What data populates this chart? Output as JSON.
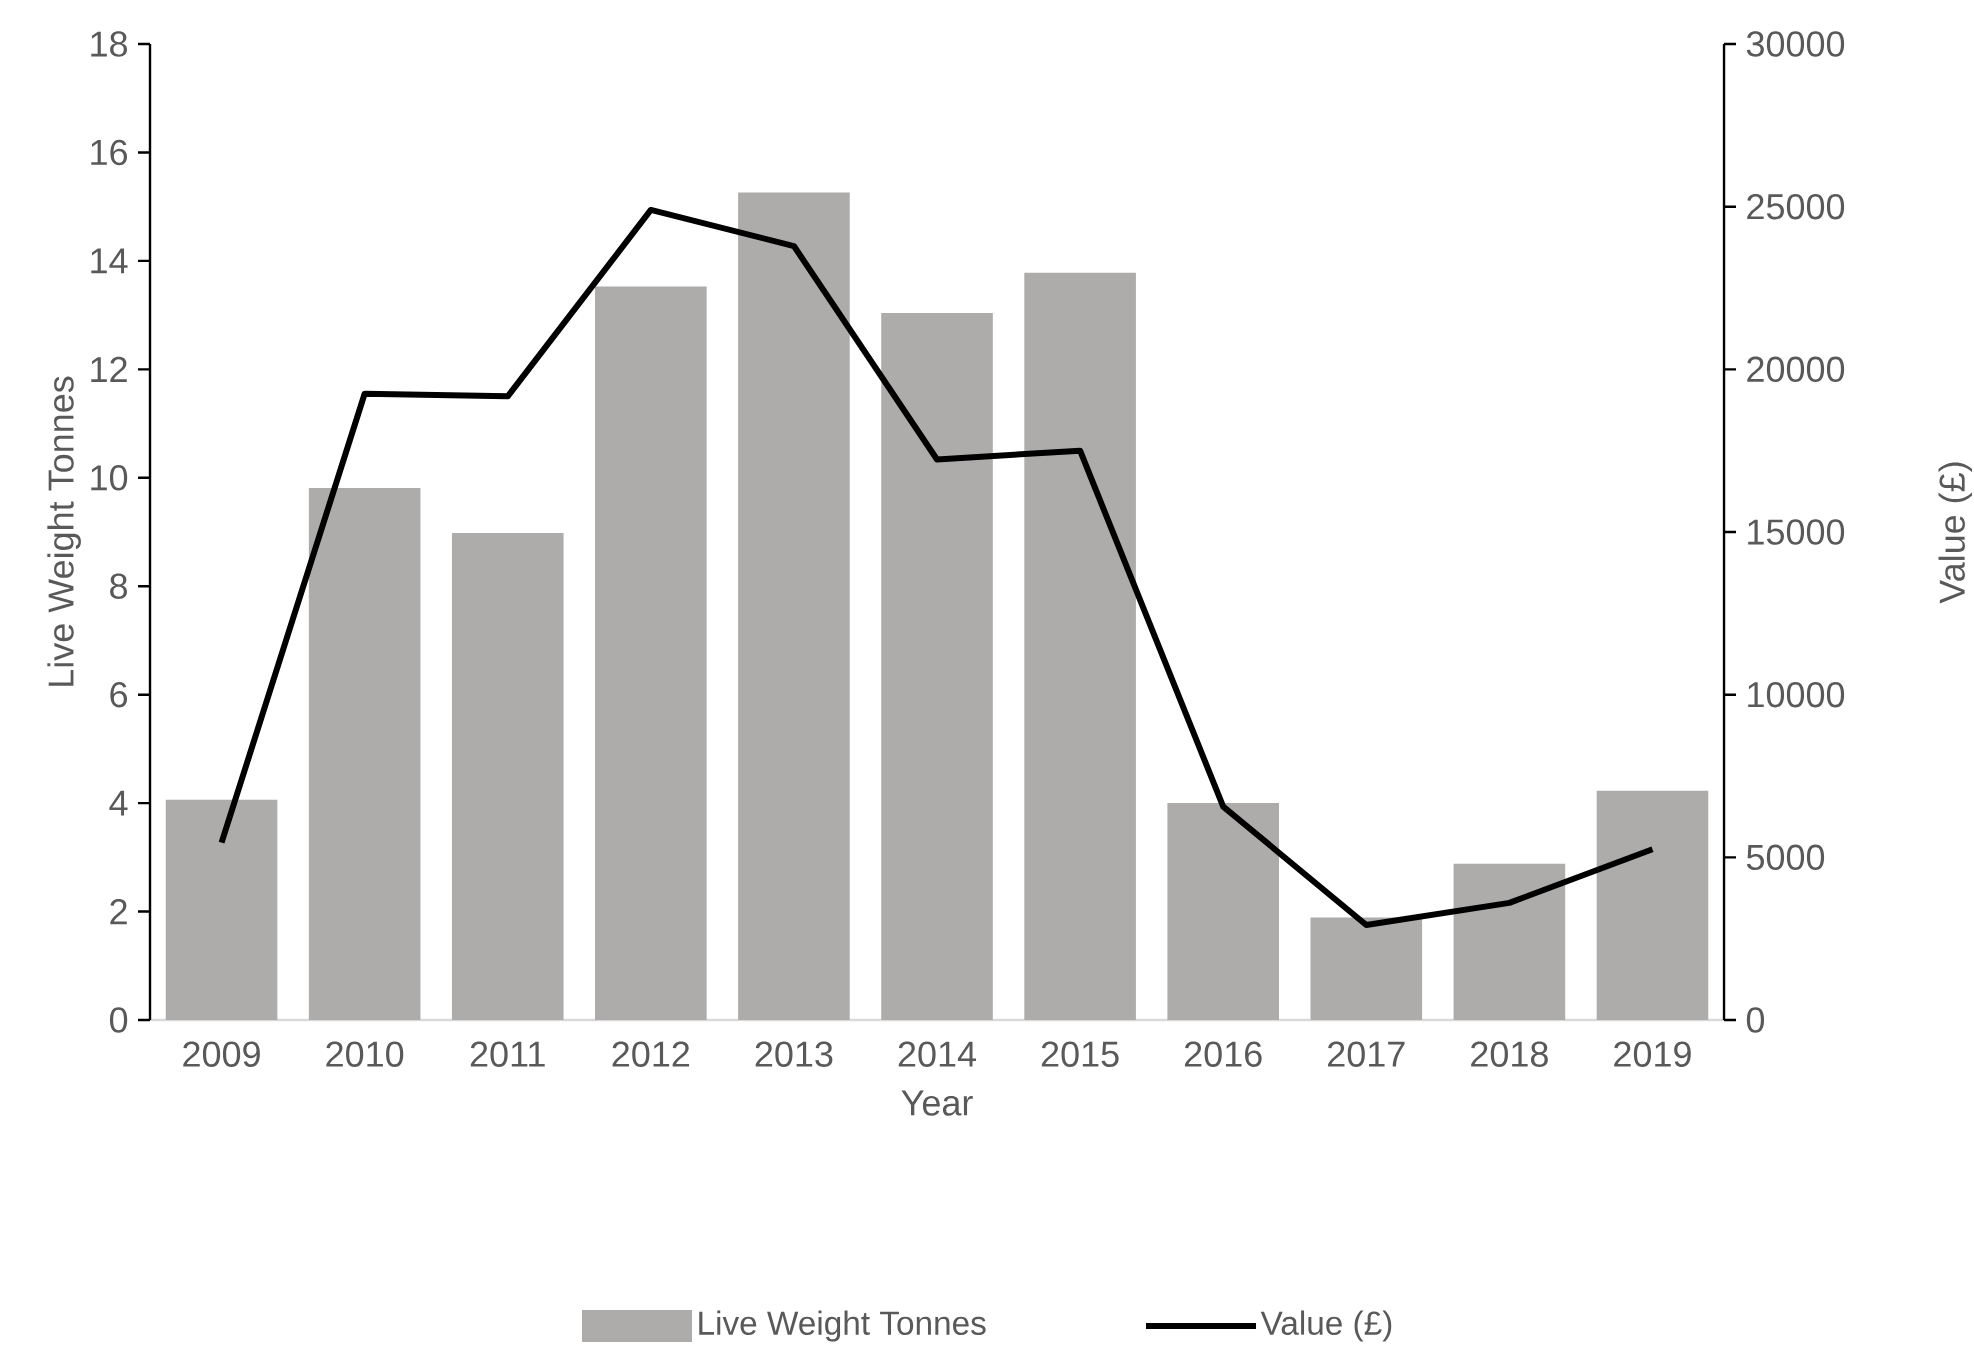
{
  "chart_data": {
    "type": "bar",
    "xlabel": "Year",
    "ylabel": "Live Weight Tonnes",
    "y2label": "Value (£)",
    "categories": [
      "2009",
      "2010",
      "2011",
      "2012",
      "2013",
      "2014",
      "2015",
      "2016",
      "2017",
      "2018",
      "2019"
    ],
    "series": [
      {
        "name": "Live Weight Tonnes",
        "color": "#aeabab",
        "values": [
          4.06,
          9.81,
          8.98,
          13.53,
          15.26,
          13.04,
          13.78,
          4.0,
          1.89,
          2.88,
          4.23
        ]
      },
      {
        "name": "Value (£)",
        "type": "line",
        "axis": "y2",
        "color": "#000000",
        "values": [
          5450,
          19250,
          19170,
          24900,
          23790,
          17230,
          17500,
          6560,
          2920,
          3600,
          5250
        ]
      }
    ],
    "ylim": [
      0,
      18
    ],
    "yticks": [
      0,
      2,
      4,
      6,
      8,
      10,
      12,
      14,
      16,
      18
    ],
    "y2lim": [
      0,
      30000
    ],
    "y2ticks": [
      0,
      5000,
      10000,
      15000,
      20000,
      25000,
      30000
    ],
    "legend": "bottom",
    "grid": false,
    "marker": "none",
    "line_style": "solid"
  }
}
